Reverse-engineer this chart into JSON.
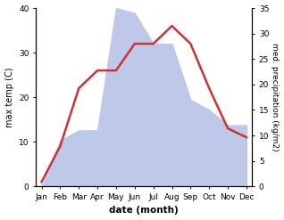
{
  "months": [
    "Jan",
    "Feb",
    "Mar",
    "Apr",
    "May",
    "Jun",
    "Jul",
    "Aug",
    "Sep",
    "Oct",
    "Nov",
    "Dec"
  ],
  "temperature": [
    1,
    9,
    22,
    26,
    26,
    32,
    32,
    36,
    32,
    22,
    13,
    11
  ],
  "precipitation": [
    0,
    9,
    11,
    11,
    35,
    34,
    28,
    28,
    17,
    15,
    12,
    12
  ],
  "temp_color": "#cc3333",
  "precip_fill_color": "#bec8e8",
  "background_color": "#ffffff",
  "xlabel": "date (month)",
  "ylabel_left": "max temp (C)",
  "ylabel_right": "med. precipitation (kg/m2)",
  "ylim_left": [
    0,
    40
  ],
  "ylim_right": [
    0,
    35
  ],
  "yticks_left": [
    0,
    10,
    20,
    30,
    40
  ],
  "yticks_right": [
    0,
    5,
    10,
    15,
    20,
    25,
    30,
    35
  ]
}
